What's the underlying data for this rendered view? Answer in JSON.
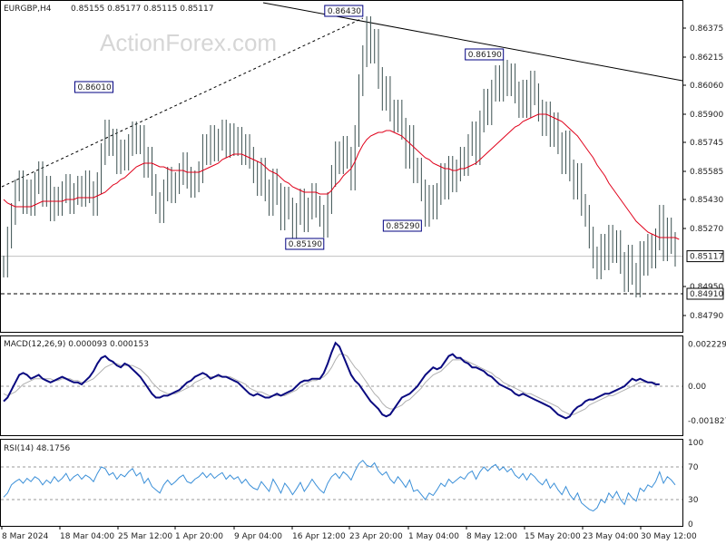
{
  "header": {
    "symbol": "EURGBP,H4",
    "ohlc": "0.85155 0.85177 0.85115 0.85117"
  },
  "watermark": "ActionForex.com",
  "colors": {
    "candle": "#3a4f4f",
    "ma": "#e0001a",
    "trendline": "#000000",
    "macd": "#0a0a80",
    "signal": "#b0b0b0",
    "rsi": "#3a8fd8",
    "label_border": "#000080",
    "label_text": "#000080"
  },
  "chart_data": [
    {
      "type": "line",
      "panel": "price",
      "title": "EURGBP,H4",
      "ylim": [
        0.8471,
        0.8652
      ],
      "y_ticks": [
        "0.86375",
        "0.86215",
        "0.86060",
        "0.85900",
        "0.85745",
        "0.85585",
        "0.85430",
        "0.85270",
        "0.84950",
        "0.84790"
      ],
      "current_price": "0.85117",
      "support_level": "0.84910",
      "x_ticks": [
        "8 Mar 2024",
        "18 Mar 04:00",
        "25 Mar 12:00",
        "1 Apr 20:00",
        "9 Apr 04:00",
        "16 Apr 12:00",
        "23 Apr 20:00",
        "1 May 04:00",
        "8 May 12:00",
        "15 May 20:00",
        "23 May 04:00",
        "30 May 12:00"
      ],
      "annotations": [
        {
          "text": "0.86010",
          "x_idx": 28,
          "y": 0.8601
        },
        {
          "text": "0.86430",
          "x_idx": 92,
          "y": 0.8643
        },
        {
          "text": "0.86190",
          "x_idx": 128,
          "y": 0.8619
        },
        {
          "text": "0.85190",
          "x_idx": 82,
          "y": 0.8519
        },
        {
          "text": "0.85290",
          "x_idx": 107,
          "y": 0.8529
        }
      ],
      "series": [
        {
          "kind": "close",
          "values": [
            0.8506,
            0.8522,
            0.8535,
            0.8548,
            0.8553,
            0.8541,
            0.8548,
            0.854,
            0.8552,
            0.8558,
            0.8545,
            0.855,
            0.8537,
            0.8544,
            0.854,
            0.8547,
            0.8551,
            0.8541,
            0.8546,
            0.855,
            0.8545,
            0.8553,
            0.8547,
            0.854,
            0.8552,
            0.8568,
            0.8581,
            0.8573,
            0.8576,
            0.8563,
            0.857,
            0.8565,
            0.8573,
            0.858,
            0.8574,
            0.8578,
            0.8561,
            0.8566,
            0.8551,
            0.8541,
            0.8536,
            0.8548,
            0.8555,
            0.8547,
            0.8552,
            0.8557,
            0.8563,
            0.8555,
            0.855,
            0.8553,
            0.8558,
            0.8573,
            0.8568,
            0.8578,
            0.857,
            0.8576,
            0.8581,
            0.8572,
            0.8579,
            0.8573,
            0.8577,
            0.8568,
            0.8573,
            0.8566,
            0.8558,
            0.8551,
            0.856,
            0.8548,
            0.854,
            0.8554,
            0.8546,
            0.8532,
            0.8544,
            0.8538,
            0.8527,
            0.8535,
            0.8543,
            0.8531,
            0.8538,
            0.8546,
            0.8539,
            0.8534,
            0.8528,
            0.8541,
            0.8556,
            0.8569,
            0.8563,
            0.8572,
            0.8566,
            0.8554,
            0.8578,
            0.8606,
            0.8622,
            0.8638,
            0.8624,
            0.8631,
            0.861,
            0.8598,
            0.8605,
            0.8592,
            0.8586,
            0.8592,
            0.8582,
            0.8566,
            0.8578,
            0.8558,
            0.856,
            0.8548,
            0.8534,
            0.8545,
            0.8538,
            0.8546,
            0.8557,
            0.8549,
            0.8561,
            0.8553,
            0.8559,
            0.8566,
            0.8562,
            0.8573,
            0.858,
            0.8568,
            0.8586,
            0.8598,
            0.859,
            0.8603,
            0.8611,
            0.8603,
            0.8614,
            0.8606,
            0.8612,
            0.8602,
            0.8594,
            0.8603,
            0.8594,
            0.8608,
            0.8601,
            0.8592,
            0.8584,
            0.8591,
            0.8578,
            0.8585,
            0.8574,
            0.8563,
            0.8575,
            0.8559,
            0.8549,
            0.8557,
            0.854,
            0.8534,
            0.8522,
            0.8511,
            0.8505,
            0.8518,
            0.851,
            0.8523,
            0.8514,
            0.852,
            0.8508,
            0.8498,
            0.8512,
            0.8502,
            0.8495,
            0.8514,
            0.8507,
            0.8518,
            0.8511,
            0.8521,
            0.8534,
            0.8515,
            0.8527,
            0.8519,
            0.8512
          ]
        },
        {
          "kind": "moving_average",
          "values": [
            0.8543,
            0.8541,
            0.854,
            0.8539,
            0.8539,
            0.8539,
            0.8539,
            0.8539,
            0.854,
            0.8541,
            0.8542,
            0.8542,
            0.8542,
            0.8542,
            0.8542,
            0.8542,
            0.8543,
            0.8543,
            0.8543,
            0.8544,
            0.8544,
            0.8544,
            0.8544,
            0.8544,
            0.8545,
            0.8546,
            0.8547,
            0.8549,
            0.8551,
            0.8552,
            0.8554,
            0.8555,
            0.8557,
            0.8559,
            0.8561,
            0.8562,
            0.8563,
            0.8563,
            0.8563,
            0.8562,
            0.8561,
            0.8561,
            0.856,
            0.8559,
            0.8559,
            0.8559,
            0.8559,
            0.8558,
            0.8558,
            0.8558,
            0.8558,
            0.8559,
            0.856,
            0.8561,
            0.8562,
            0.8563,
            0.8565,
            0.8566,
            0.8567,
            0.8568,
            0.8568,
            0.8568,
            0.8567,
            0.8566,
            0.8565,
            0.8564,
            0.8563,
            0.8561,
            0.8559,
            0.8558,
            0.8557,
            0.8555,
            0.8553,
            0.8552,
            0.855,
            0.8549,
            0.8548,
            0.8547,
            0.8547,
            0.8547,
            0.8547,
            0.8546,
            0.8546,
            0.8546,
            0.8548,
            0.8551,
            0.8553,
            0.8556,
            0.8558,
            0.856,
            0.8564,
            0.8569,
            0.8573,
            0.8576,
            0.8578,
            0.8579,
            0.858,
            0.858,
            0.8581,
            0.8581,
            0.858,
            0.8579,
            0.8578,
            0.8576,
            0.8574,
            0.8572,
            0.857,
            0.8568,
            0.8566,
            0.8565,
            0.8563,
            0.8562,
            0.8561,
            0.856,
            0.856,
            0.8559,
            0.8559,
            0.856,
            0.856,
            0.8561,
            0.8562,
            0.8563,
            0.8565,
            0.8567,
            0.8569,
            0.8571,
            0.8573,
            0.8575,
            0.8577,
            0.8579,
            0.8581,
            0.8583,
            0.8584,
            0.8586,
            0.8587,
            0.8588,
            0.8589,
            0.859,
            0.859,
            0.859,
            0.8589,
            0.8588,
            0.8587,
            0.8586,
            0.8584,
            0.8582,
            0.858,
            0.8578,
            0.8575,
            0.8572,
            0.8569,
            0.8566,
            0.8562,
            0.8559,
            0.8556,
            0.8552,
            0.8549,
            0.8546,
            0.8543,
            0.854,
            0.8537,
            0.8534,
            0.8531,
            0.8529,
            0.8527,
            0.8525,
            0.8524,
            0.8523,
            0.8522,
            0.8522,
            0.8522,
            0.8522,
            0.8522,
            0.8521
          ]
        }
      ]
    },
    {
      "type": "line",
      "panel": "macd",
      "title": "MACD(12,26,9) 0.000093 0.000153",
      "ylim": [
        -0.0025,
        0.0025
      ],
      "y_ticks": [
        "0.002229",
        "0.00",
        "-0.001827"
      ],
      "series": [
        {
          "name": "MACD",
          "values": [
            -0.0008,
            -0.0006,
            -0.0002,
            0.0002,
            0.0006,
            0.0007,
            0.0006,
            0.0004,
            0.0005,
            0.0006,
            0.0004,
            0.0003,
            0.0002,
            0.0003,
            0.0004,
            0.0005,
            0.0004,
            0.0003,
            0.0002,
            0.0002,
            0.0001,
            0.0003,
            0.0005,
            0.0008,
            0.0012,
            0.0015,
            0.0016,
            0.0014,
            0.0013,
            0.0011,
            0.001,
            0.0012,
            0.0011,
            0.0009,
            0.0007,
            0.0005,
            0.0002,
            -0.0001,
            -0.0004,
            -0.0006,
            -0.0006,
            -0.0005,
            -0.0005,
            -0.0004,
            -0.0003,
            -0.0002,
            0.0,
            0.0002,
            0.0003,
            0.0005,
            0.0006,
            0.0007,
            0.0006,
            0.0004,
            0.0005,
            0.0006,
            0.0005,
            0.0005,
            0.0004,
            0.0003,
            0.0002,
            0.0,
            -0.0002,
            -0.0004,
            -0.0005,
            -0.0004,
            -0.0005,
            -0.0006,
            -0.0006,
            -0.0005,
            -0.0004,
            -0.0005,
            -0.0004,
            -0.0003,
            -0.0002,
            0.0,
            0.0002,
            0.0003,
            0.0003,
            0.0004,
            0.0004,
            0.0004,
            0.0007,
            0.0012,
            0.0018,
            0.0023,
            0.0021,
            0.0016,
            0.0011,
            0.0006,
            0.0003,
            0.0001,
            -0.0002,
            -0.0005,
            -0.0008,
            -0.001,
            -0.0012,
            -0.0015,
            -0.0016,
            -0.0015,
            -0.0012,
            -0.0009,
            -0.0006,
            -0.0005,
            -0.0004,
            -0.0002,
            0.0,
            0.0003,
            0.0006,
            0.0008,
            0.001,
            0.0009,
            0.001,
            0.0013,
            0.0016,
            0.0017,
            0.0015,
            0.0015,
            0.0013,
            0.0012,
            0.001,
            0.001,
            0.0009,
            0.0008,
            0.0006,
            0.0005,
            0.0003,
            0.0001,
            0.0,
            -0.0001,
            -0.0002,
            -0.0004,
            -0.0005,
            -0.0004,
            -0.0005,
            -0.0006,
            -0.0007,
            -0.0008,
            -0.0009,
            -0.001,
            -0.0011,
            -0.0013,
            -0.0015,
            -0.0016,
            -0.0017,
            -0.0016,
            -0.0013,
            -0.0011,
            -0.001,
            -0.0008,
            -0.0007,
            -0.0007,
            -0.0006,
            -0.0005,
            -0.0004,
            -0.0004,
            -0.0003,
            -0.0002,
            -0.0001,
            0.0,
            0.0002,
            0.0004,
            0.0003,
            0.0004,
            0.0003,
            0.0002,
            0.0002,
            0.0001,
            0.0001
          ]
        },
        {
          "name": "Signal",
          "values": [
            -0.0004,
            -0.0005,
            -0.0004,
            -0.0003,
            -0.0001,
            0.0001,
            0.0002,
            0.0003,
            0.0004,
            0.0004,
            0.0004,
            0.0004,
            0.0004,
            0.0003,
            0.0003,
            0.0004,
            0.0004,
            0.0004,
            0.0003,
            0.0003,
            0.0002,
            0.0002,
            0.0003,
            0.0004,
            0.0006,
            0.0008,
            0.001,
            0.0011,
            0.0012,
            0.0012,
            0.0011,
            0.0011,
            0.0011,
            0.0011,
            0.001,
            0.0009,
            0.0007,
            0.0005,
            0.0002,
            0.0,
            -0.0002,
            -0.0003,
            -0.0004,
            -0.0004,
            -0.0004,
            -0.0003,
            -0.0002,
            -0.0001,
            0.0,
            0.0002,
            0.0003,
            0.0004,
            0.0005,
            0.0005,
            0.0005,
            0.0005,
            0.0005,
            0.0005,
            0.0005,
            0.0004,
            0.0003,
            0.0002,
            0.0001,
            -0.0001,
            -0.0002,
            -0.0003,
            -0.0003,
            -0.0004,
            -0.0005,
            -0.0005,
            -0.0005,
            -0.0005,
            -0.0005,
            -0.0004,
            -0.0003,
            -0.0002,
            0.0,
            0.0001,
            0.0002,
            0.0003,
            0.0003,
            0.0004,
            0.0005,
            0.0007,
            0.001,
            0.0014,
            0.0017,
            0.0017,
            0.0016,
            0.0013,
            0.001,
            0.0008,
            0.0005,
            0.0002,
            -0.0001,
            -0.0004,
            -0.0006,
            -0.0009,
            -0.0011,
            -0.0012,
            -0.0012,
            -0.0011,
            -0.001,
            -0.0008,
            -0.0007,
            -0.0005,
            -0.0003,
            -0.0001,
            0.0002,
            0.0004,
            0.0006,
            0.0007,
            0.0008,
            0.001,
            0.0012,
            0.0014,
            0.0014,
            0.0014,
            0.0014,
            0.0013,
            0.0012,
            0.0011,
            0.001,
            0.0009,
            0.0008,
            0.0007,
            0.0005,
            0.0004,
            0.0002,
            0.0001,
            0.0,
            -0.0001,
            -0.0002,
            -0.0003,
            -0.0004,
            -0.0004,
            -0.0005,
            -0.0006,
            -0.0007,
            -0.0008,
            -0.0009,
            -0.001,
            -0.0011,
            -0.0013,
            -0.0014,
            -0.0015,
            -0.0015,
            -0.0014,
            -0.0013,
            -0.0012,
            -0.001,
            -0.0009,
            -0.0008,
            -0.0007,
            -0.0006,
            -0.0005,
            -0.0005,
            -0.0004,
            -0.0003,
            -0.0002,
            -0.0001,
            0.0,
            0.0001,
            0.0002,
            0.0002,
            0.0002,
            0.0002,
            0.0002
          ]
        }
      ]
    },
    {
      "type": "line",
      "panel": "rsi",
      "title": "RSI(14) 48.1756",
      "ylim": [
        0,
        100
      ],
      "y_ticks": [
        "100",
        "70",
        "30",
        "0"
      ],
      "series": [
        {
          "name": "RSI",
          "values": [
            33,
            38,
            48,
            52,
            55,
            50,
            56,
            52,
            58,
            55,
            48,
            54,
            50,
            58,
            52,
            56,
            62,
            53,
            58,
            61,
            55,
            60,
            57,
            52,
            62,
            70,
            68,
            60,
            63,
            55,
            61,
            58,
            64,
            68,
            59,
            63,
            50,
            56,
            46,
            42,
            38,
            48,
            54,
            48,
            52,
            57,
            60,
            52,
            50,
            55,
            58,
            63,
            57,
            62,
            56,
            60,
            63,
            55,
            60,
            55,
            58,
            50,
            55,
            48,
            44,
            42,
            52,
            46,
            40,
            55,
            47,
            38,
            50,
            44,
            36,
            43,
            51,
            40,
            47,
            55,
            48,
            42,
            38,
            50,
            58,
            62,
            56,
            64,
            60,
            54,
            65,
            74,
            78,
            72,
            70,
            75,
            65,
            60,
            64,
            55,
            50,
            58,
            52,
            45,
            54,
            40,
            42,
            36,
            30,
            38,
            35,
            42,
            50,
            46,
            55,
            50,
            54,
            58,
            55,
            62,
            65,
            55,
            64,
            70,
            65,
            70,
            73,
            66,
            70,
            64,
            68,
            60,
            56,
            62,
            54,
            62,
            58,
            52,
            48,
            55,
            44,
            50,
            42,
            36,
            46,
            36,
            30,
            38,
            26,
            22,
            18,
            16,
            20,
            30,
            26,
            38,
            32,
            40,
            30,
            24,
            38,
            32,
            28,
            44,
            40,
            48,
            45,
            52,
            64,
            50,
            58,
            54,
            48
          ]
        }
      ]
    }
  ]
}
